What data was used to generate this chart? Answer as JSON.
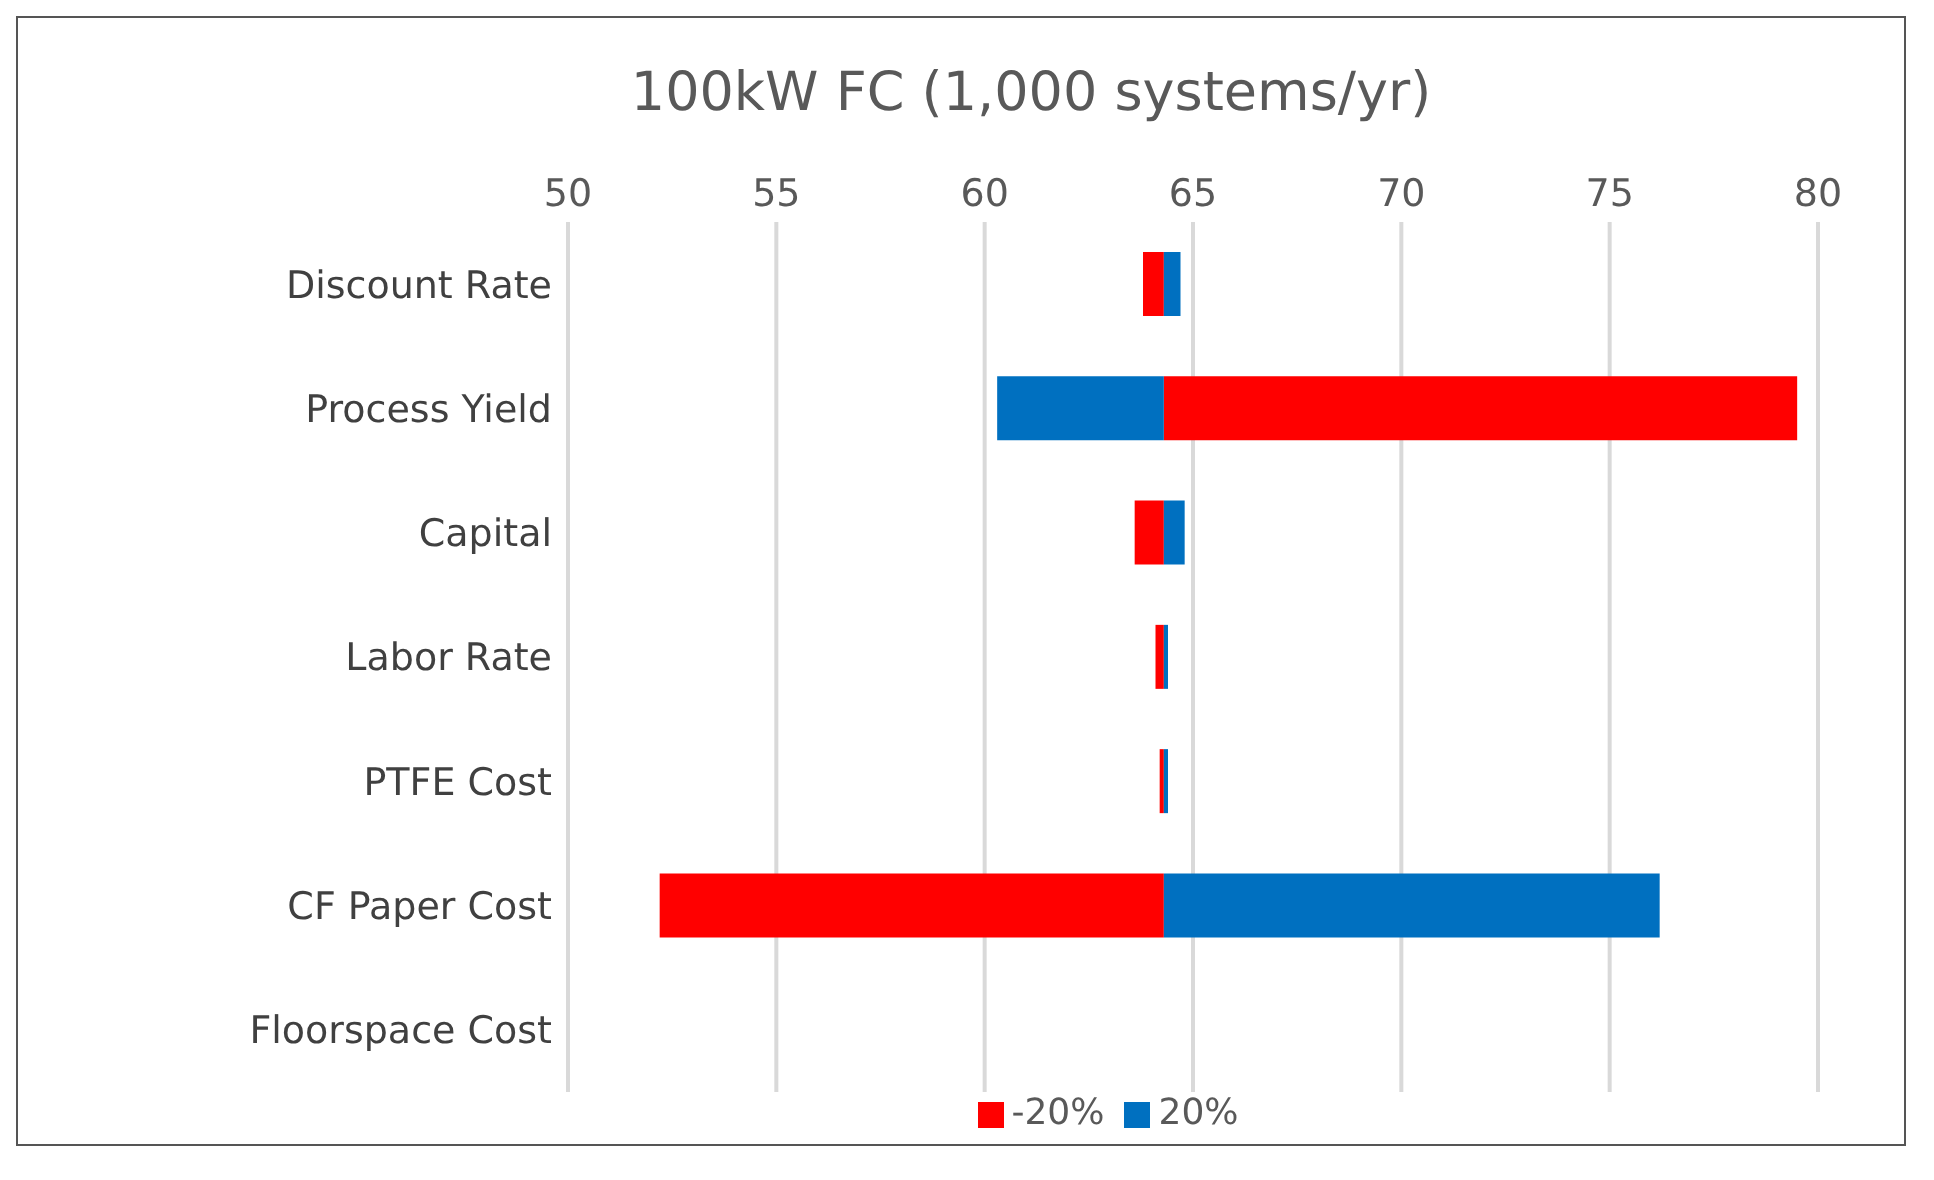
{
  "chart_data": {
    "type": "bar",
    "orientation": "horizontal",
    "title": "100kW FC (1,000 systems/yr)",
    "categories": [
      "Discount Rate",
      "Process Yield",
      "Capital",
      "Labor Rate",
      "PTFE Cost",
      "CF Paper Cost",
      "Floorspace Cost"
    ],
    "series": [
      {
        "name": "-20%",
        "color": "#ff0000",
        "base": [
          64.3,
          64.3,
          64.3,
          64.3,
          64.3,
          64.3,
          null
        ],
        "values": [
          -0.5,
          15.2,
          -0.7,
          -0.2,
          -0.1,
          -12.1,
          null
        ]
      },
      {
        "name": "20%",
        "color": "#0070c0",
        "base": [
          64.3,
          64.3,
          64.3,
          64.3,
          64.3,
          64.3,
          null
        ],
        "values": [
          0.4,
          -4.0,
          0.5,
          0.1,
          0.1,
          11.9,
          null
        ]
      }
    ],
    "xlim": [
      50,
      80
    ],
    "xticks": [
      50,
      55,
      60,
      65,
      70,
      75,
      80
    ],
    "grid": "x",
    "legend": "bottom"
  }
}
